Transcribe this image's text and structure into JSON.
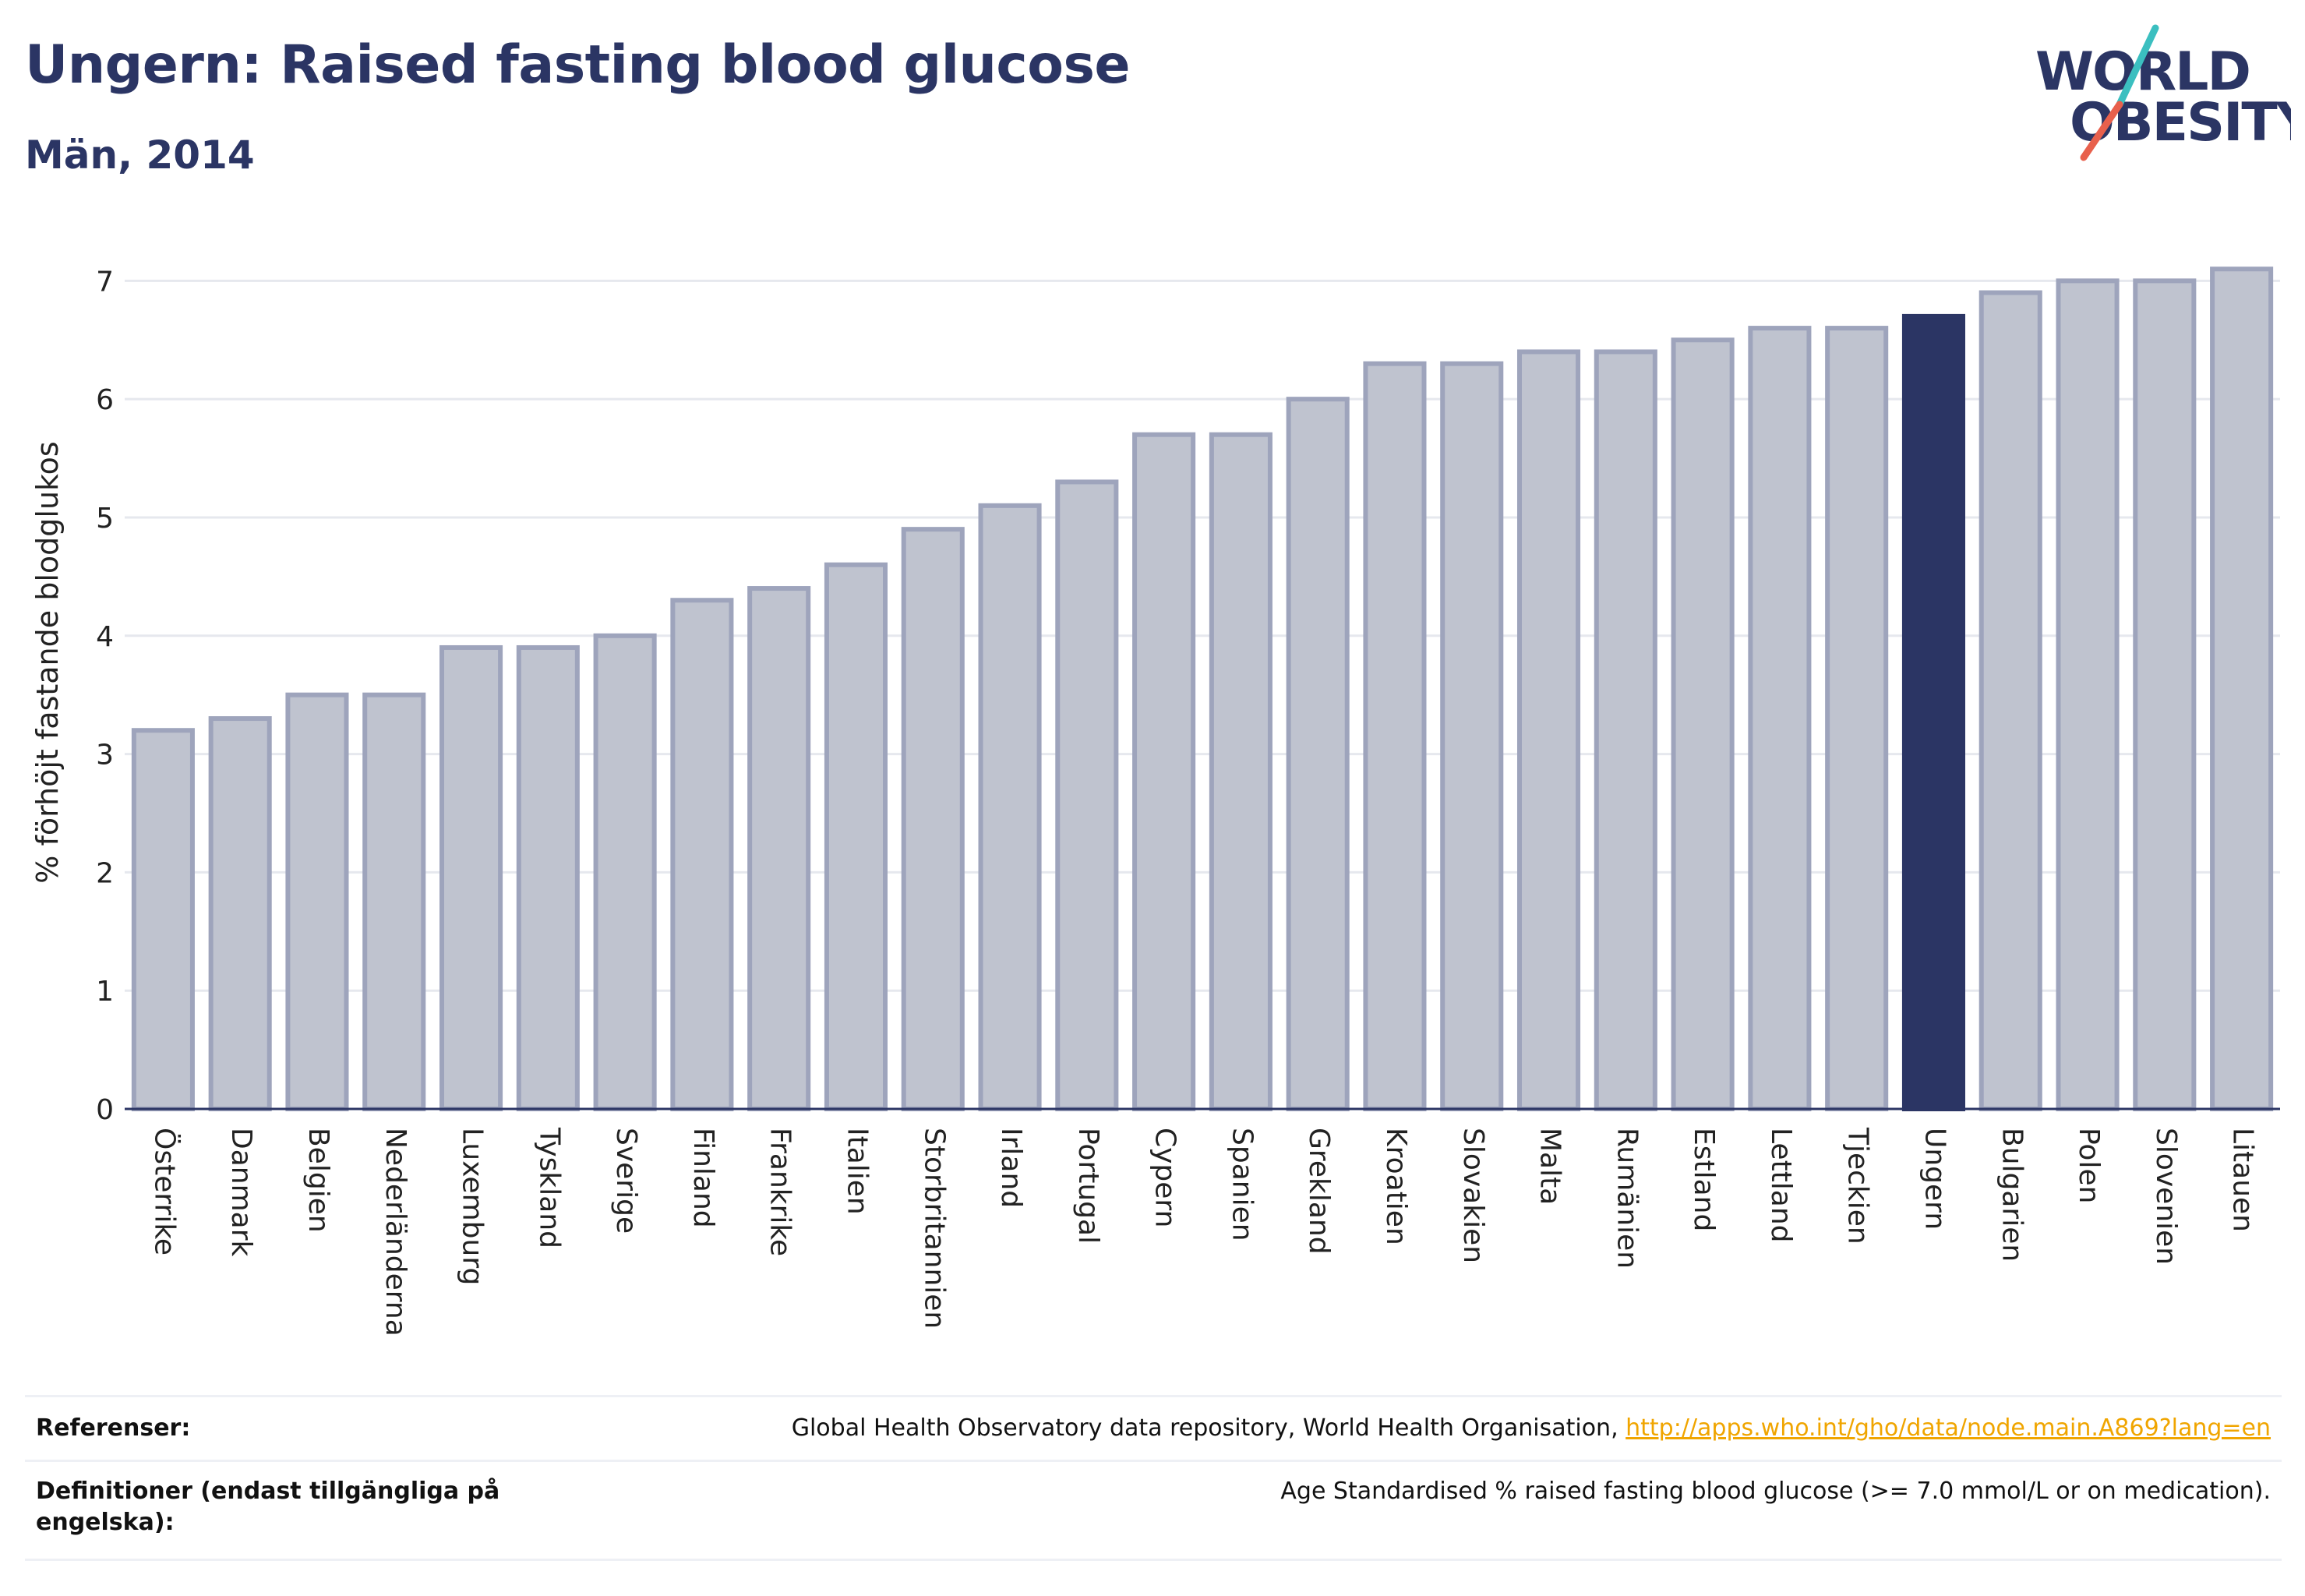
{
  "header": {
    "title": "Ungern: Raised fasting blood glucose",
    "subtitle": "Män, 2014"
  },
  "logo": {
    "line1": "WORLD",
    "line2": "OBESITY",
    "colors": {
      "text": "#2b3564",
      "slash_teal": "#3bbfc0",
      "slash_red": "#e8604c"
    }
  },
  "chart_data": {
    "type": "bar",
    "title": "",
    "xlabel": "",
    "ylabel": "% förhöjt fastande blodglukos",
    "ylim": [
      0,
      7.2
    ],
    "yticks": [
      0,
      1,
      2,
      3,
      4,
      5,
      6,
      7
    ],
    "grid": true,
    "highlight": "Ungern",
    "colors": {
      "bar": "#bfc3cf",
      "bar_edge": "#9ea4bc",
      "highlight": "#2b3564",
      "grid": "#e6e8ee",
      "axis": "#2b3564"
    },
    "categories": [
      "Österrike",
      "Danmark",
      "Belgien",
      "Nederländerna",
      "Luxemburg",
      "Tyskland",
      "Sverige",
      "Finland",
      "Frankrike",
      "Italien",
      "Storbritannien",
      "Irland",
      "Portugal",
      "Cypern",
      "Spanien",
      "Grekland",
      "Kroatien",
      "Slovakien",
      "Malta",
      "Rumänien",
      "Estland",
      "Lettland",
      "Tjeckien",
      "Ungern",
      "Bulgarien",
      "Polen",
      "Slovenien",
      "Litauen"
    ],
    "values": [
      3.2,
      3.3,
      3.5,
      3.5,
      3.9,
      3.9,
      4.0,
      4.3,
      4.4,
      4.6,
      4.9,
      5.1,
      5.3,
      5.7,
      5.7,
      6.0,
      6.3,
      6.3,
      6.4,
      6.4,
      6.5,
      6.6,
      6.6,
      6.7,
      6.9,
      7.0,
      7.0,
      7.1
    ]
  },
  "references": {
    "label": "Referenser:",
    "text": "Global Health Observatory data repository, World Health Organisation, ",
    "link": "http://apps.who.int/gho/data/node.main.A869?lang=en"
  },
  "definitions": {
    "label": "Definitioner (endast tillgängliga på engelska):",
    "text": "Age Standardised % raised fasting blood glucose (>= 7.0 mmol/L or on medication)."
  }
}
